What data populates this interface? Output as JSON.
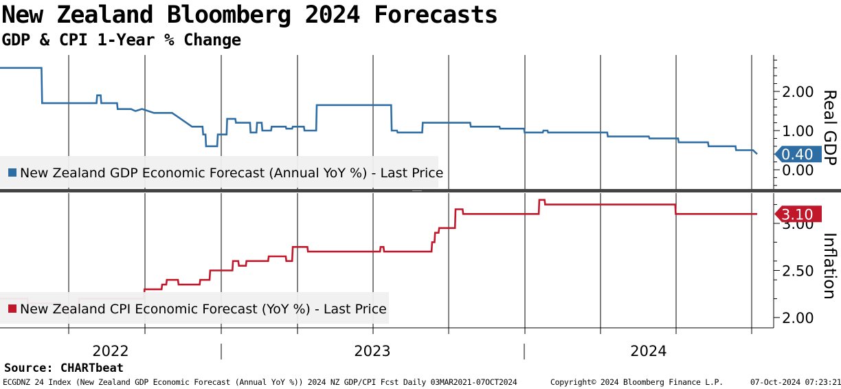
{
  "header": {
    "title": "New Zealand Bloomberg 2024 Forecasts",
    "subtitle": "GDP & CPI 1-Year % Change"
  },
  "colors": {
    "gdp": "#2e6da4",
    "cpi": "#c0172b"
  },
  "chart_data": [
    {
      "type": "line",
      "name": "gdp-panel",
      "legend": "New Zealand GDP Economic Forecast (Annual YoY %) - Last Price",
      "ylabel": "Real GDP",
      "ylim": [
        -0.3,
        2.75
      ],
      "yticks": [
        "2.00",
        "1.00",
        "0.00"
      ],
      "last_value": "0.40",
      "series": [
        {
          "name": "New Zealand GDP Economic Forecast (Annual YoY %)",
          "x": [
            "2021-03-03",
            "2021-06-03",
            "2021-06-04",
            "2021-09-05",
            "2021-09-06",
            "2021-09-12",
            "2021-09-13",
            "2021-10-10",
            "2021-10-11",
            "2021-11-03",
            "2021-11-10",
            "2021-11-11",
            "2021-11-21",
            "2021-11-22",
            "2021-12-12",
            "2021-12-13",
            "2022-01-11",
            "2022-01-12",
            "2022-02-15",
            "2022-03-05",
            "2022-03-06",
            "2022-03-10",
            "2022-03-11",
            "2022-03-30",
            "2022-03-31",
            "2022-04-15",
            "2022-04-16",
            "2022-04-30",
            "2022-05-01",
            "2022-05-25",
            "2022-05-26",
            "2022-06-05",
            "2022-06-06",
            "2022-06-14",
            "2022-06-15",
            "2022-06-30",
            "2022-07-01",
            "2022-07-25",
            "2022-07-26",
            "2022-08-05",
            "2022-08-06",
            "2022-08-25",
            "2022-08-26",
            "2022-09-15",
            "2022-09-16",
            "2023-01-21",
            "2023-01-22",
            "2023-01-31",
            "2023-02-01",
            "2023-03-15",
            "2023-03-16",
            "2023-06-05",
            "2023-06-06",
            "2023-07-25",
            "2023-07-26",
            "2023-09-05",
            "2023-09-06",
            "2023-10-07",
            "2023-10-08",
            "2023-10-15",
            "2023-10-16",
            "2023-10-30",
            "2023-10-31",
            "2023-11-25",
            "2023-11-26",
            "2024-01-25",
            "2024-01-26",
            "2024-01-31",
            "2024-02-01",
            "2024-04-05",
            "2024-04-06",
            "2024-05-25",
            "2024-05-26",
            "2024-07-15",
            "2024-07-16",
            "2024-08-31",
            "2024-09-01",
            "2024-09-30",
            "2024-10-07"
          ],
          "values": [
            2.6,
            2.6,
            1.7,
            1.7,
            1.9,
            1.9,
            1.7,
            1.7,
            1.55,
            1.55,
            1.5,
            1.5,
            1.55,
            1.55,
            1.45,
            1.45,
            1.45,
            1.45,
            1.1,
            1.1,
            0.9,
            0.9,
            0.6,
            0.6,
            0.9,
            0.9,
            1.3,
            1.3,
            1.2,
            1.2,
            0.95,
            0.95,
            1.2,
            1.2,
            1.0,
            1.0,
            1.1,
            1.1,
            1.05,
            1.05,
            1.1,
            1.1,
            1.0,
            1.0,
            1.65,
            1.65,
            1.0,
            1.0,
            0.95,
            0.95,
            1.2,
            1.2,
            1.1,
            1.1,
            1.05,
            1.05,
            0.95,
            0.95,
            1.0,
            1.0,
            0.95,
            0.95,
            0.95,
            0.95,
            0.95,
            0.95,
            0.85,
            0.85,
            0.85,
            0.85,
            0.8,
            0.8,
            0.7,
            0.7,
            0.6,
            0.6,
            0.5,
            0.5,
            0.4
          ]
        }
      ]
    },
    {
      "type": "line",
      "name": "cpi-panel",
      "legend": "New Zealand CPI Economic Forecast (YoY %) - Last Price",
      "ylabel": "Inflation",
      "ylim": [
        1.75,
        3.35
      ],
      "yticks": [
        "3.00",
        "2.50",
        "2.00"
      ],
      "last_value": "3.10",
      "series": [
        {
          "name": "New Zealand CPI Economic Forecast (YoY %)",
          "x": [
            "2021-03-10",
            "2021-05-10",
            "2021-05-11",
            "2021-07-05",
            "2021-07-06",
            "2021-08-05",
            "2021-08-06",
            "2021-11-25",
            "2021-11-26",
            "2021-12-25",
            "2021-12-26",
            "2022-01-02",
            "2022-01-03",
            "2022-01-22",
            "2022-01-23",
            "2022-02-28",
            "2022-03-01",
            "2022-03-17",
            "2022-03-18",
            "2022-04-25",
            "2022-04-26",
            "2022-05-05",
            "2022-05-06",
            "2022-05-18",
            "2022-05-19",
            "2022-06-25",
            "2022-06-26",
            "2022-07-25",
            "2022-07-26",
            "2022-08-05",
            "2022-08-06",
            "2022-08-31",
            "2022-09-01",
            "2022-09-25",
            "2022-09-26",
            "2023-01-02",
            "2023-01-03",
            "2023-01-08",
            "2023-01-09",
            "2023-03-31",
            "2023-04-01",
            "2023-04-05",
            "2023-04-06",
            "2023-04-12",
            "2023-04-13",
            "2023-05-10",
            "2023-05-11",
            "2023-05-23",
            "2023-05-24",
            "2023-06-01",
            "2023-06-02",
            "2023-09-30",
            "2023-10-01",
            "2023-10-10",
            "2023-10-11",
            "2024-04-21",
            "2024-04-22",
            "2024-05-20",
            "2024-05-21",
            "2024-10-07"
          ],
          "values": [
            2.2,
            2.2,
            2.15,
            2.15,
            2.1,
            2.1,
            2.2,
            2.2,
            2.3,
            2.3,
            2.35,
            2.35,
            2.4,
            2.4,
            2.35,
            2.35,
            2.4,
            2.4,
            2.5,
            2.5,
            2.6,
            2.6,
            2.55,
            2.55,
            2.6,
            2.6,
            2.65,
            2.65,
            2.6,
            2.6,
            2.75,
            2.75,
            2.7,
            2.7,
            2.7,
            2.7,
            2.75,
            2.75,
            2.7,
            2.7,
            2.8,
            2.8,
            2.9,
            2.9,
            2.95,
            2.95,
            3.15,
            3.15,
            3.1,
            3.1,
            3.1,
            3.1,
            3.25,
            3.25,
            3.2,
            3.2,
            3.2,
            3.2,
            3.1,
            3.1
          ]
        }
      ]
    }
  ],
  "xaxis": {
    "years": [
      "2022",
      "2023",
      "2024"
    ]
  },
  "footer": {
    "source": "Source: CHARTbeat",
    "left": "ECGDNZ 24 Index (New Zealand GDP Economic Forecast (Annual YoY %)) 2024 NZ GDP/CPI Fcst  Daily 03MAR2021-07OCT2024",
    "middle": "Copyright© 2024 Bloomberg Finance L.P.",
    "right": "07-Oct-2024 07:23:21"
  }
}
